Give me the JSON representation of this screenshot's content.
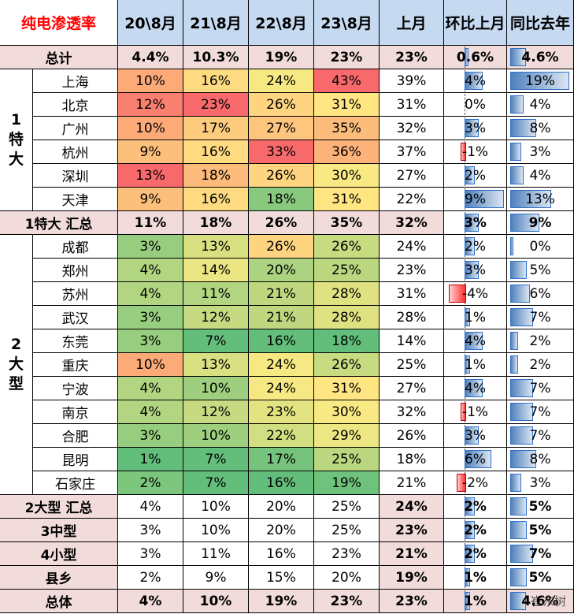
{
  "chart_data": {
    "type": "table",
    "title": "纯电渗透率",
    "columns": [
      "20\\8月",
      "21\\8月",
      "22\\8月",
      "23\\8月",
      "上月",
      "环比上月",
      "同比去年"
    ],
    "rows": [
      {
        "group": "",
        "label": "总计",
        "values": [
          "4.4%",
          "10.3%",
          "19%",
          "23%",
          "23%",
          "0.6%",
          "4.6%"
        ],
        "mom": 0.6,
        "yoy": 4.6
      },
      {
        "group": "1特大",
        "label": "上海",
        "values": [
          "10%",
          "16%",
          "24%",
          "43%",
          "39%",
          "4%",
          "19%"
        ],
        "mom": 4,
        "yoy": 19
      },
      {
        "group": "1特大",
        "label": "北京",
        "values": [
          "12%",
          "23%",
          "26%",
          "31%",
          "31%",
          "0%",
          "4%"
        ],
        "mom": 0,
        "yoy": 4
      },
      {
        "group": "1特大",
        "label": "广州",
        "values": [
          "10%",
          "17%",
          "27%",
          "35%",
          "32%",
          "3%",
          "8%"
        ],
        "mom": 3,
        "yoy": 8
      },
      {
        "group": "1特大",
        "label": "杭州",
        "values": [
          "9%",
          "16%",
          "33%",
          "36%",
          "37%",
          "-1%",
          "3%"
        ],
        "mom": -1,
        "yoy": 3
      },
      {
        "group": "1特大",
        "label": "深圳",
        "values": [
          "13%",
          "18%",
          "26%",
          "30%",
          "27%",
          "2%",
          "4%"
        ],
        "mom": 2,
        "yoy": 4
      },
      {
        "group": "1特大",
        "label": "天津",
        "values": [
          "9%",
          "16%",
          "18%",
          "31%",
          "22%",
          "9%",
          "13%"
        ],
        "mom": 9,
        "yoy": 13
      },
      {
        "group": "",
        "label": "1特大 汇总",
        "values": [
          "11%",
          "18%",
          "26%",
          "35%",
          "32%",
          "3%",
          "9%"
        ],
        "mom": 3,
        "yoy": 9
      },
      {
        "group": "2大型",
        "label": "成都",
        "values": [
          "3%",
          "13%",
          "26%",
          "26%",
          "24%",
          "2%",
          "0%"
        ],
        "mom": 2,
        "yoy": 0
      },
      {
        "group": "2大型",
        "label": "郑州",
        "values": [
          "4%",
          "14%",
          "20%",
          "25%",
          "23%",
          "3%",
          "5%"
        ],
        "mom": 3,
        "yoy": 5
      },
      {
        "group": "2大型",
        "label": "苏州",
        "values": [
          "4%",
          "11%",
          "21%",
          "28%",
          "31%",
          "-4%",
          "6%"
        ],
        "mom": -4,
        "yoy": 6
      },
      {
        "group": "2大型",
        "label": "武汉",
        "values": [
          "3%",
          "12%",
          "21%",
          "28%",
          "28%",
          "1%",
          "7%"
        ],
        "mom": 1,
        "yoy": 7
      },
      {
        "group": "2大型",
        "label": "东莞",
        "values": [
          "3%",
          "7%",
          "16%",
          "18%",
          "14%",
          "4%",
          "2%"
        ],
        "mom": 4,
        "yoy": 2
      },
      {
        "group": "2大型",
        "label": "重庆",
        "values": [
          "10%",
          "13%",
          "24%",
          "26%",
          "25%",
          "1%",
          "2%"
        ],
        "mom": 1,
        "yoy": 2
      },
      {
        "group": "2大型",
        "label": "宁波",
        "values": [
          "4%",
          "10%",
          "24%",
          "31%",
          "27%",
          "4%",
          "7%"
        ],
        "mom": 4,
        "yoy": 7
      },
      {
        "group": "2大型",
        "label": "南京",
        "values": [
          "4%",
          "12%",
          "23%",
          "30%",
          "32%",
          "-1%",
          "7%"
        ],
        "mom": -1,
        "yoy": 7
      },
      {
        "group": "2大型",
        "label": "合肥",
        "values": [
          "3%",
          "10%",
          "22%",
          "29%",
          "26%",
          "3%",
          "7%"
        ],
        "mom": 3,
        "yoy": 7
      },
      {
        "group": "2大型",
        "label": "昆明",
        "values": [
          "1%",
          "7%",
          "17%",
          "25%",
          "18%",
          "6%",
          "8%"
        ],
        "mom": 6,
        "yoy": 8
      },
      {
        "group": "2大型",
        "label": "石家庄",
        "values": [
          "2%",
          "7%",
          "16%",
          "19%",
          "21%",
          "-2%",
          "3%"
        ],
        "mom": -2,
        "yoy": 3
      },
      {
        "group": "",
        "label": "2大型 汇总",
        "values": [
          "4%",
          "10%",
          "20%",
          "25%",
          "24%",
          "2%",
          "5%"
        ],
        "mom": 2,
        "yoy": 5
      },
      {
        "group": "",
        "label": "3中型",
        "values": [
          "3%",
          "10%",
          "20%",
          "25%",
          "23%",
          "2%",
          "5%"
        ],
        "mom": 2,
        "yoy": 5
      },
      {
        "group": "",
        "label": "4小型",
        "values": [
          "3%",
          "11%",
          "16%",
          "23%",
          "21%",
          "2%",
          "7%"
        ],
        "mom": 2,
        "yoy": 7
      },
      {
        "group": "",
        "label": "县乡",
        "values": [
          "2%",
          "9%",
          "15%",
          "20%",
          "19%",
          "1%",
          "5%"
        ],
        "mom": 1,
        "yoy": 5
      },
      {
        "group": "",
        "label": "总体",
        "values": [
          "4%",
          "10%",
          "19%",
          "23%",
          "23%",
          "1%",
          "4.6%"
        ],
        "mom": 1,
        "yoy": 4.6
      }
    ],
    "groups": [
      {
        "name": "1特大",
        "lines": [
          "1",
          "特",
          "大"
        ]
      },
      {
        "name": "2大型",
        "lines": [
          "2",
          "大",
          "型"
        ]
      }
    ],
    "watermark": "崔东树"
  },
  "colors": {
    "header_bg": "#c5d9f1",
    "title_text": "#ff0000",
    "summary_bg": "#f2dcdb",
    "white": "#ffffff",
    "heat_low": "#63be7b",
    "heat_mid": "#ffeb84",
    "heat_high": "#f8696b"
  }
}
